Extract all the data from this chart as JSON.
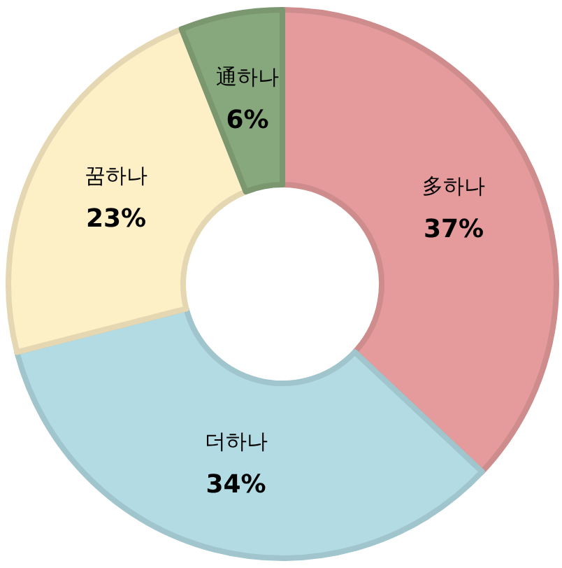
{
  "chart_data": {
    "type": "donut",
    "categories": [
      "多하나",
      "더하나",
      "꿈하나",
      "通하나"
    ],
    "values": [
      37,
      34,
      23,
      6
    ],
    "colors": [
      "#e59b9b",
      "#b2dbe4",
      "#fdefc6",
      "#87a87c"
    ],
    "value_labels": [
      "37%",
      "34%",
      "23%",
      "6%"
    ]
  }
}
